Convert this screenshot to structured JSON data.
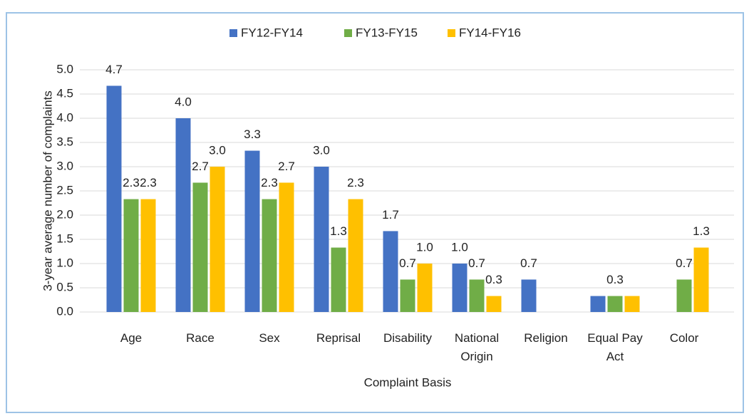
{
  "chart_data": {
    "type": "bar",
    "y_axis_label": "3-year average number of complaints",
    "x_axis_label": "Complaint Basis",
    "categories": [
      "Age",
      "Race",
      "Sex",
      "Reprisal",
      "Disability",
      "National Origin",
      "Religion",
      "Equal Pay Act",
      "Color"
    ],
    "series": [
      {
        "name": "FY12-FY14",
        "color": "#4472c4",
        "values": [
          4.67,
          4.0,
          3.33,
          3.0,
          1.67,
          1.0,
          0.67,
          0.33,
          0
        ],
        "value_labels": [
          "4.7",
          "4.0",
          "3.3",
          "3.0",
          "1.7",
          "1.0",
          "0.7",
          null,
          null
        ]
      },
      {
        "name": "FY13-FY15",
        "color": "#70ad47",
        "values": [
          2.33,
          2.67,
          2.33,
          1.33,
          0.67,
          0.67,
          0,
          0.33,
          0.67
        ],
        "value_labels": [
          "2.3",
          "2.7",
          "2.3",
          "1.3",
          "0.7",
          "0.7",
          null,
          "0.3",
          "0.7"
        ]
      },
      {
        "name": "FY14-FY16",
        "color": "#ffc000",
        "values": [
          2.33,
          3.0,
          2.67,
          2.33,
          1.0,
          0.33,
          0,
          0.33,
          1.33
        ],
        "value_labels": [
          "2.3",
          "3.0",
          "2.7",
          "2.3",
          "1.0",
          "0.3",
          null,
          null,
          "1.3"
        ]
      }
    ],
    "ylim": [
      0,
      5
    ],
    "yticks": [
      {
        "value": 0,
        "label": "0.0"
      },
      {
        "value": 0.5,
        "label": "0.5"
      },
      {
        "value": 1,
        "label": "1.0"
      },
      {
        "value": 1.5,
        "label": "1.5"
      },
      {
        "value": 2,
        "label": "2.0"
      },
      {
        "value": 2.5,
        "label": "2.5"
      },
      {
        "value": 3,
        "label": "3.0"
      },
      {
        "value": 3.5,
        "label": "3.5"
      },
      {
        "value": 4,
        "label": "4.0"
      },
      {
        "value": 4.5,
        "label": "4.5"
      },
      {
        "value": 5,
        "label": "5.0"
      }
    ],
    "grid": true,
    "legend": "top"
  }
}
